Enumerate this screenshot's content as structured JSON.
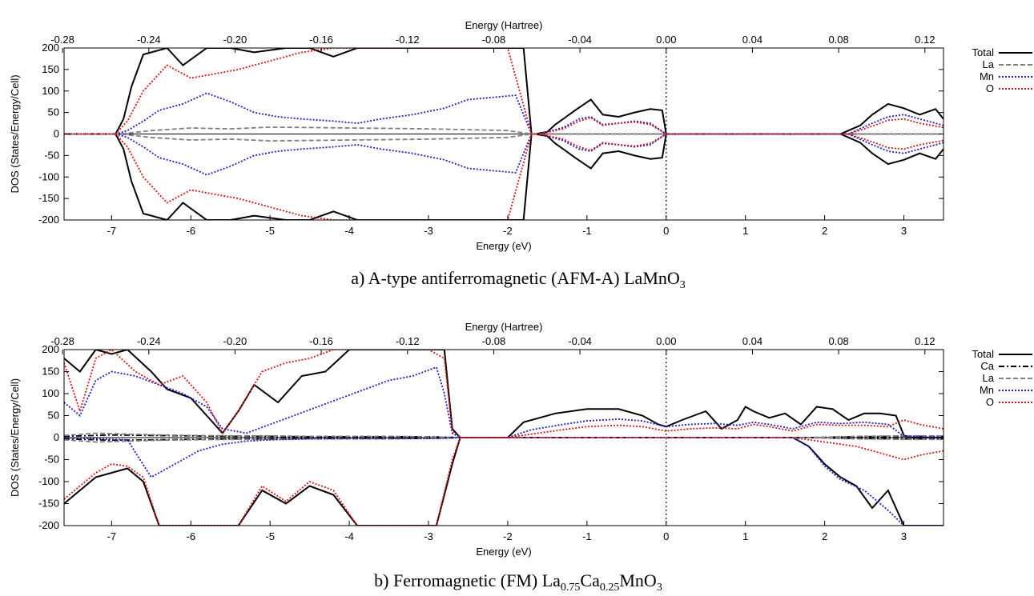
{
  "chart_data": [
    {
      "type": "line",
      "caption_prefix": "a)",
      "caption": "A-type antiferromagnetic (AFM-A) LaMnO",
      "caption_sub": "3",
      "xlabel": "Energy (eV)",
      "x2label": "Energy (Hartree)",
      "ylabel": "DOS (States/Energy/Cell)",
      "xlim": [
        -7.6,
        3.5
      ],
      "ylim": [
        -200,
        200
      ],
      "xticks": [
        "-7",
        "-6",
        "-5",
        "-4",
        "-3",
        "-2",
        "-1",
        "0",
        "1",
        "2",
        "3"
      ],
      "x2ticks": [
        "-0.28",
        "-0.24",
        "-0.20",
        "-0.16",
        "-0.12",
        "-0.08",
        "-0.04",
        "0.00",
        "0.04",
        "0.08",
        "0.12"
      ],
      "yticks": [
        "200",
        "150",
        "100",
        "50",
        "0",
        "-50",
        "-100",
        "-150",
        "-200"
      ],
      "fermi_level": 0,
      "legend_position": "right",
      "series": [
        {
          "name": "Total",
          "color": "#000000",
          "dash": "solid",
          "x": [
            -7.6,
            -6.95,
            -6.85,
            -6.75,
            -6.6,
            -6.3,
            -6.1,
            -5.8,
            -5.5,
            -5.2,
            -4.8,
            -4.5,
            -4.2,
            -3.9,
            -3.6,
            -3.2,
            -2.8,
            -2.4,
            -2.0,
            -1.8,
            -1.7,
            -1.65,
            -1.5,
            -1.4,
            -1.3,
            -1.15,
            -0.95,
            -0.8,
            -0.6,
            -0.4,
            -0.2,
            -0.05,
            0.0,
            2.2,
            2.3,
            2.45,
            2.6,
            2.8,
            3.0,
            3.2,
            3.4,
            3.5
          ],
          "y": [
            0,
            0,
            35,
            110,
            185,
            200,
            160,
            200,
            200,
            190,
            200,
            200,
            180,
            200,
            200,
            200,
            200,
            200,
            200,
            200,
            0,
            0,
            5,
            22,
            35,
            55,
            80,
            45,
            40,
            50,
            58,
            55,
            0,
            0,
            8,
            20,
            45,
            70,
            60,
            45,
            58,
            35
          ]
        },
        {
          "name": "La",
          "color": "#808080",
          "dash": "dashed",
          "x": [
            -7.6,
            -6.9,
            -6.5,
            -6.0,
            -5.5,
            -5.0,
            -4.5,
            -4.0,
            -3.5,
            -3.0,
            -2.5,
            -2.0,
            -1.7,
            -1.6,
            0.0,
            2.3,
            3.5
          ],
          "y": [
            0,
            0,
            8,
            14,
            12,
            16,
            15,
            14,
            13,
            12,
            10,
            8,
            0,
            0,
            0,
            0,
            0
          ]
        },
        {
          "name": "Mn",
          "color": "#1a1ad8",
          "dash": "dotted",
          "x": [
            -7.6,
            -6.95,
            -6.8,
            -6.6,
            -6.4,
            -6.1,
            -5.8,
            -5.5,
            -5.2,
            -4.9,
            -4.6,
            -4.2,
            -3.9,
            -3.6,
            -3.2,
            -2.8,
            -2.5,
            -2.2,
            -1.9,
            -1.7,
            -1.6,
            -1.3,
            -1.1,
            -0.95,
            -0.8,
            -0.6,
            -0.4,
            -0.2,
            0.0,
            2.3,
            2.6,
            2.8,
            3.0,
            3.2,
            3.5
          ],
          "y": [
            0,
            0,
            8,
            30,
            55,
            70,
            95,
            75,
            50,
            40,
            35,
            30,
            25,
            35,
            45,
            60,
            80,
            85,
            90,
            0,
            0,
            15,
            35,
            40,
            22,
            25,
            30,
            25,
            0,
            0,
            25,
            40,
            45,
            35,
            20
          ]
        },
        {
          "name": "O",
          "color": "#e01010",
          "dash": "dotted",
          "x": [
            -7.6,
            -6.95,
            -6.8,
            -6.6,
            -6.3,
            -6.0,
            -5.7,
            -5.4,
            -5.0,
            -4.6,
            -4.2,
            -3.8,
            -3.4,
            -3.0,
            -2.5,
            -2.0,
            -1.7,
            -1.6,
            -1.3,
            -1.1,
            -0.95,
            -0.8,
            -0.6,
            -0.4,
            -0.2,
            0.0,
            2.3,
            2.6,
            2.8,
            3.0,
            3.2,
            3.5
          ],
          "y": [
            0,
            0,
            30,
            100,
            160,
            130,
            140,
            150,
            170,
            190,
            200,
            200,
            200,
            200,
            200,
            200,
            0,
            0,
            12,
            30,
            38,
            20,
            25,
            28,
            22,
            0,
            0,
            18,
            32,
            35,
            25,
            15
          ]
        }
      ]
    },
    {
      "type": "line",
      "caption_prefix": "b)",
      "caption": "Ferromagnetic (FM) La",
      "caption_parts": [
        "0.75",
        "Ca",
        "0.25",
        "MnO",
        "3"
      ],
      "xlabel": "Energy (eV)",
      "x2label": "Energy (Hartree)",
      "ylabel": "DOS (States/Energy/Cell)",
      "xlim": [
        -7.6,
        3.5
      ],
      "ylim": [
        -200,
        200
      ],
      "xticks": [
        "-7",
        "-6",
        "-5",
        "-4",
        "-3",
        "-2",
        "-1",
        "0",
        "1",
        "2",
        "3"
      ],
      "x2ticks": [
        "-0.28",
        "-0.24",
        "-0.20",
        "-0.16",
        "-0.12",
        "-0.08",
        "-0.04",
        "0.00",
        "0.04",
        "0.08",
        "0.12"
      ],
      "yticks": [
        "200",
        "150",
        "100",
        "50",
        "0",
        "-50",
        "-100",
        "-150",
        "-200"
      ],
      "fermi_level": 0,
      "legend_position": "right",
      "series": [
        {
          "name": "Total",
          "color": "#000000",
          "dash": "solid",
          "up_x": [
            -7.6,
            -7.4,
            -7.2,
            -7.0,
            -6.8,
            -6.5,
            -6.3,
            -6.0,
            -5.8,
            -5.6,
            -5.4,
            -5.2,
            -4.9,
            -4.6,
            -4.3,
            -4.0,
            -3.6,
            -3.2,
            -2.9,
            -2.8,
            -2.7,
            -2.6,
            -2.0,
            -1.8,
            -1.4,
            -1.0,
            -0.6,
            -0.3,
            -0.1,
            0.0,
            0.2,
            0.5,
            0.7,
            0.9,
            1.0,
            1.1,
            1.3,
            1.5,
            1.7,
            1.9,
            2.1,
            2.3,
            2.5,
            2.7,
            2.9,
            3.0,
            3.1,
            3.5
          ],
          "up_y": [
            180,
            150,
            200,
            190,
            200,
            150,
            110,
            90,
            50,
            10,
            60,
            120,
            80,
            140,
            150,
            200,
            200,
            200,
            200,
            200,
            20,
            0,
            0,
            35,
            55,
            65,
            65,
            50,
            30,
            25,
            40,
            60,
            20,
            40,
            70,
            60,
            45,
            55,
            30,
            70,
            65,
            40,
            55,
            55,
            50,
            5,
            0,
            0
          ],
          "dn_x": [
            -7.6,
            -7.4,
            -7.2,
            -7.0,
            -6.8,
            -6.6,
            -6.4,
            -6.2,
            -6.0,
            -5.8,
            -5.6,
            -5.4,
            -5.1,
            -4.8,
            -4.5,
            -4.2,
            -3.9,
            -3.6,
            -3.3,
            -3.0,
            -2.9,
            -2.7,
            -2.6,
            1.6,
            1.8,
            2.0,
            2.2,
            2.4,
            2.6,
            2.8,
            3.0,
            3.5
          ],
          "dn_y": [
            -150,
            -120,
            -90,
            -80,
            -70,
            -100,
            -200,
            -200,
            -200,
            -200,
            -200,
            -200,
            -120,
            -150,
            -110,
            -130,
            -200,
            -200,
            -200,
            -200,
            -200,
            -60,
            0,
            0,
            -20,
            -60,
            -90,
            -110,
            -160,
            -120,
            -200,
            -200
          ]
        },
        {
          "name": "Ca",
          "color": "#000000",
          "dash": "dashdot",
          "x": [
            -7.6,
            -7.0,
            -6.5,
            -6.0,
            -5.5,
            -5.0,
            -4.5,
            -4.0,
            -3.5,
            -3.0,
            -2.8,
            -2.6,
            1.8,
            2.4,
            3.0,
            3.5
          ],
          "y": [
            3,
            6,
            5,
            4,
            3,
            3,
            2,
            2,
            2,
            2,
            1,
            0,
            0,
            -2,
            -3,
            -3
          ]
        },
        {
          "name": "La",
          "color": "#808080",
          "dash": "dashed",
          "x": [
            -7.6,
            -7.2,
            -6.8,
            -6.4,
            -6.0,
            -5.5,
            -5.0,
            -4.5,
            -4.0,
            -3.5,
            -3.0,
            -2.8,
            -2.6,
            1.8,
            2.4,
            3.0,
            3.5
          ],
          "y": [
            5,
            10,
            8,
            6,
            5,
            4,
            4,
            3,
            3,
            3,
            2,
            1,
            0,
            0,
            -3,
            -4,
            -4
          ]
        },
        {
          "name": "Mn",
          "color": "#1a1ad8",
          "dash": "dotted",
          "up_x": [
            -7.6,
            -7.4,
            -7.2,
            -7.0,
            -6.7,
            -6.4,
            -6.1,
            -5.8,
            -5.6,
            -5.3,
            -5.0,
            -4.7,
            -4.4,
            -4.1,
            -3.8,
            -3.5,
            -3.2,
            -2.9,
            -2.8,
            -2.7,
            -2.6,
            -2.0,
            -1.7,
            -1.3,
            -1.0,
            -0.6,
            -0.3,
            0.0,
            0.3,
            0.6,
            0.9,
            1.1,
            1.3,
            1.6,
            1.9,
            2.2,
            2.5,
            2.8,
            3.0,
            3.5
          ],
          "up_y": [
            80,
            50,
            130,
            150,
            140,
            120,
            100,
            70,
            20,
            10,
            30,
            50,
            70,
            90,
            110,
            130,
            140,
            160,
            100,
            10,
            0,
            0,
            18,
            30,
            38,
            42,
            38,
            25,
            30,
            32,
            28,
            35,
            30,
            20,
            35,
            32,
            35,
            30,
            3,
            0
          ],
          "dn_x": [
            -7.6,
            -6.8,
            -6.5,
            -6.2,
            -5.9,
            -5.6,
            -5.3,
            -5.0,
            -4.5,
            -4.0,
            -3.5,
            -3.0,
            -2.7,
            -2.6,
            1.6,
            1.8,
            2.0,
            2.2,
            2.5,
            2.8,
            3.0,
            3.5
          ],
          "dn_y": [
            0,
            -5,
            -90,
            -60,
            -30,
            -15,
            -8,
            -5,
            -3,
            -2,
            -2,
            -2,
            -1,
            0,
            0,
            -20,
            -65,
            -95,
            -120,
            -165,
            -200,
            -200
          ]
        },
        {
          "name": "O",
          "color": "#e01010",
          "dash": "dotted",
          "up_x": [
            -7.6,
            -7.4,
            -7.2,
            -7.0,
            -6.7,
            -6.4,
            -6.1,
            -5.8,
            -5.6,
            -5.4,
            -5.1,
            -4.8,
            -4.5,
            -4.2,
            -4.0,
            -3.7,
            -3.3,
            -3.0,
            -2.8,
            -2.7,
            -2.6,
            -2.0,
            -1.7,
            -1.3,
            -1.0,
            -0.6,
            -0.3,
            0.0,
            0.3,
            0.6,
            0.9,
            1.1,
            1.3,
            1.6,
            1.9,
            2.2,
            2.5,
            2.8,
            3.0,
            3.2,
            3.5
          ],
          "up_y": [
            170,
            60,
            180,
            200,
            150,
            120,
            140,
            80,
            10,
            60,
            150,
            170,
            180,
            200,
            200,
            200,
            200,
            200,
            180,
            15,
            0,
            0,
            8,
            18,
            25,
            28,
            25,
            15,
            20,
            22,
            20,
            30,
            25,
            15,
            30,
            28,
            28,
            25,
            40,
            30,
            20
          ],
          "dn_x": [
            -7.6,
            -7.4,
            -7.2,
            -7.0,
            -6.8,
            -6.6,
            -6.4,
            -6.2,
            -6.0,
            -5.8,
            -5.6,
            -5.4,
            -5.1,
            -4.8,
            -4.5,
            -4.2,
            -3.9,
            -3.6,
            -3.3,
            -3.0,
            -2.9,
            -2.7,
            -2.6,
            1.6,
            2.0,
            2.4,
            2.8,
            3.0,
            3.2,
            3.5
          ],
          "dn_y": [
            -140,
            -110,
            -80,
            -60,
            -65,
            -90,
            -200,
            -200,
            -200,
            -200,
            -200,
            -200,
            -110,
            -145,
            -100,
            -120,
            -200,
            -200,
            -200,
            -200,
            -200,
            -50,
            0,
            0,
            -10,
            -20,
            -40,
            -50,
            -40,
            -30
          ]
        }
      ]
    }
  ]
}
